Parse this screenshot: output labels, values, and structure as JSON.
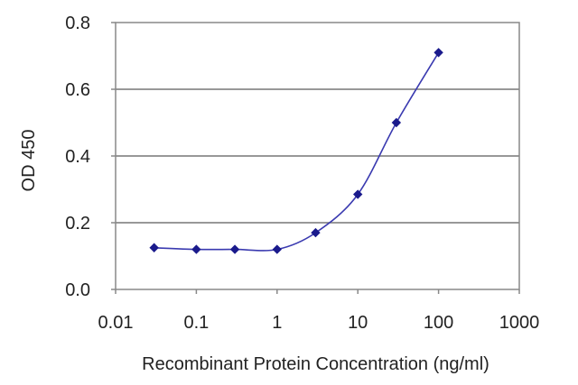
{
  "chart_data": {
    "type": "line",
    "title": "",
    "xlabel": "Recombinant Protein Concentration (ng/ml)",
    "ylabel": "OD 450",
    "x_scale": "log",
    "xlim": [
      0.01,
      1000
    ],
    "ylim": [
      0,
      0.8
    ],
    "x_ticks": [
      0.01,
      0.1,
      1,
      10,
      100,
      1000
    ],
    "x_tick_labels": [
      "0.01",
      "0.1",
      "1",
      "10",
      "100",
      "1000"
    ],
    "y_ticks": [
      0,
      0.2,
      0.4,
      0.6,
      0.8
    ],
    "y_tick_labels": [
      "0.0",
      "0.2",
      "0.4",
      "0.6",
      "0.8"
    ],
    "grid": "horizontal",
    "legend": "none",
    "series": [
      {
        "x": [
          0.03,
          0.1,
          0.3,
          1,
          3,
          10,
          30,
          100
        ],
        "y": [
          0.125,
          0.12,
          0.12,
          0.12,
          0.17,
          0.285,
          0.5,
          0.71
        ],
        "color": "#1a1a8c",
        "marker": "diamond"
      }
    ]
  }
}
